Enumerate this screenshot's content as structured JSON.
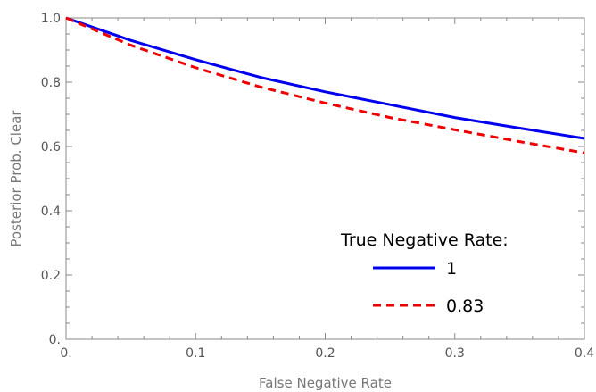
{
  "chart_data": {
    "type": "line",
    "xlabel": "False Negative Rate",
    "ylabel": "Posterior Prob. Clear",
    "xlim": [
      0,
      0.4
    ],
    "ylim": [
      0,
      1
    ],
    "x_ticks": [
      0,
      0.1,
      0.2,
      0.3,
      0.4
    ],
    "x_tick_labels": [
      "0.",
      "0.1",
      "0.2",
      "0.3",
      "0.4"
    ],
    "y_ticks": [
      0,
      0.2,
      0.4,
      0.6,
      0.8,
      1.0
    ],
    "y_tick_labels": [
      "0.",
      "0.2",
      "0.4",
      "0.6",
      "0.8",
      "1.0"
    ],
    "grid": false,
    "legend": {
      "title": "True Negative Rate:",
      "placement": "bottom-right"
    },
    "x": [
      0,
      0.05,
      0.1,
      0.15,
      0.2,
      0.25,
      0.3,
      0.35,
      0.4
    ],
    "series": [
      {
        "name": "1",
        "color": "#0000ee",
        "style": "solid",
        "values": [
          1.0,
          0.93,
          0.87,
          0.815,
          0.77,
          0.73,
          0.69,
          0.657,
          0.625
        ]
      },
      {
        "name": "0.83",
        "color": "#ee0000",
        "style": "dashed",
        "values": [
          1.0,
          0.915,
          0.845,
          0.785,
          0.735,
          0.69,
          0.652,
          0.615,
          0.58
        ]
      }
    ]
  }
}
